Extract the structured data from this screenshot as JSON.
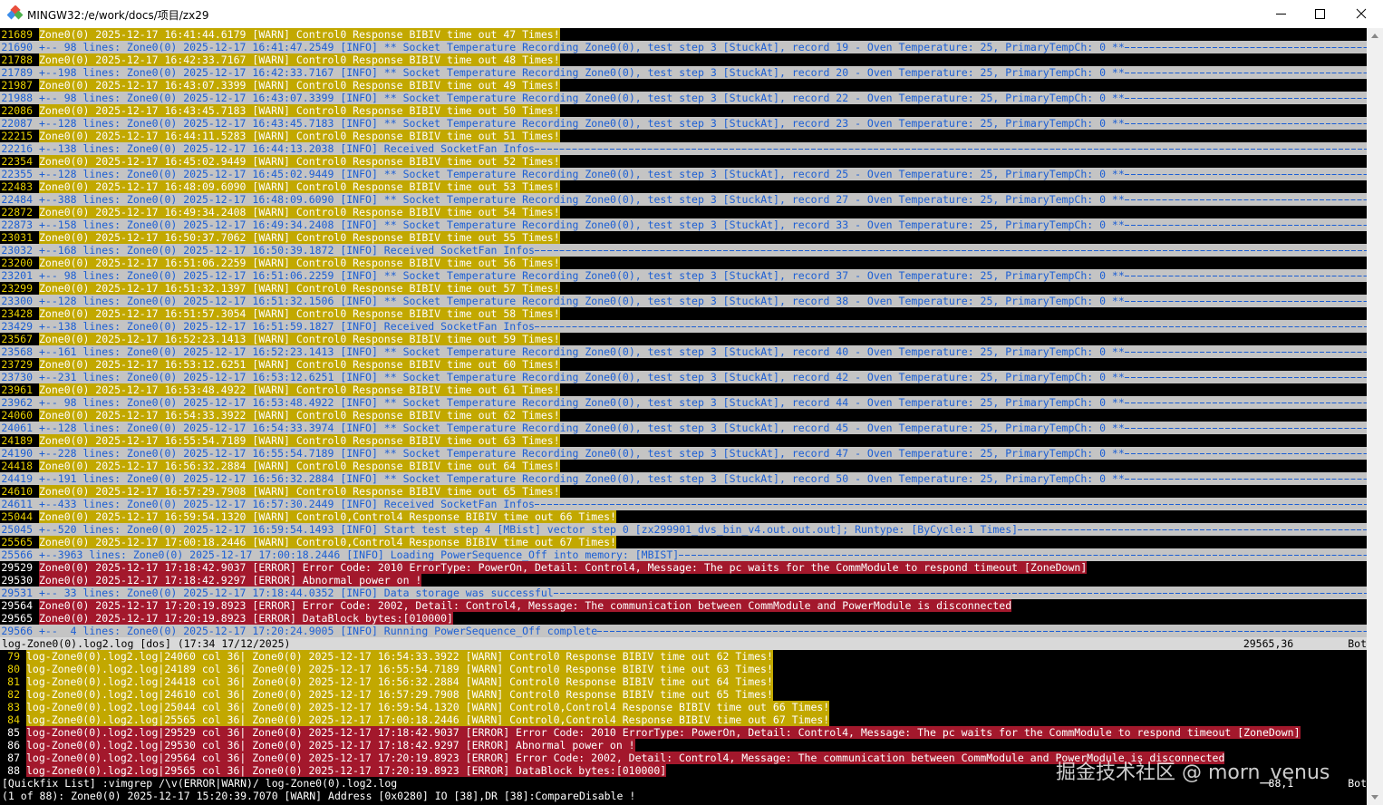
{
  "window": {
    "title": "MINGW32:/e/work/docs/项目/zx29"
  },
  "editor": {
    "lines": [
      {
        "number": 21689,
        "text": "Zone0(0) 2025-12-17 16:41:44.6179 [WARN] Control0 Response BIBIV time out 47 Times!"
      },
      {
        "number": 21690,
        "text": "+-- 98 lines: Zone0(0) 2025-12-17 16:41:47.2549 [INFO] ** Socket Temperature Recording Zone0(0), test step 3 [StuckAt], record 19 - Oven Temperature: 25, PrimaryTempCh: 0 **"
      },
      {
        "number": 21788,
        "text": "Zone0(0) 2025-12-17 16:42:33.7167 [WARN] Control0 Response BIBIV time out 48 Times!"
      },
      {
        "number": 21789,
        "text": "+--198 lines: Zone0(0) 2025-12-17 16:42:33.7167 [INFO] ** Socket Temperature Recording Zone0(0), test step 3 [StuckAt], record 20 - Oven Temperature: 25, PrimaryTempCh: 0 **"
      },
      {
        "number": 21987,
        "text": "Zone0(0) 2025-12-17 16:43:07.3399 [WARN] Control0 Response BIBIV time out 49 Times!"
      },
      {
        "number": 21988,
        "text": "+-- 98 lines: Zone0(0) 2025-12-17 16:43:07.3399 [INFO] ** Socket Temperature Recording Zone0(0), test step 3 [StuckAt], record 22 - Oven Temperature: 25, PrimaryTempCh: 0 **"
      },
      {
        "number": 22086,
        "text": "Zone0(0) 2025-12-17 16:43:45.7183 [WARN] Control0 Response BIBIV time out 50 Times!"
      },
      {
        "number": 22087,
        "text": "+--128 lines: Zone0(0) 2025-12-17 16:43:45.7183 [INFO] ** Socket Temperature Recording Zone0(0), test step 3 [StuckAt], record 23 - Oven Temperature: 25, PrimaryTempCh: 0 **"
      },
      {
        "number": 22215,
        "text": "Zone0(0) 2025-12-17 16:44:11.5283 [WARN] Control0 Response BIBIV time out 51 Times!"
      },
      {
        "number": 22216,
        "text": "+--138 lines: Zone0(0) 2025-12-17 16:44:13.2038 [INFO] Received SocketFan Infos"
      },
      {
        "number": 22354,
        "text": "Zone0(0) 2025-12-17 16:45:02.9449 [WARN] Control0 Response BIBIV time out 52 Times!"
      },
      {
        "number": 22355,
        "text": "+--128 lines: Zone0(0) 2025-12-17 16:45:02.9449 [INFO] ** Socket Temperature Recording Zone0(0), test step 3 [StuckAt], record 25 - Oven Temperature: 25, PrimaryTempCh: 0 **"
      },
      {
        "number": 22483,
        "text": "Zone0(0) 2025-12-17 16:48:09.6090 [WARN] Control0 Response BIBIV time out 53 Times!"
      },
      {
        "number": 22484,
        "text": "+--388 lines: Zone0(0) 2025-12-17 16:48:09.6090 [INFO] ** Socket Temperature Recording Zone0(0), test step 3 [StuckAt], record 27 - Oven Temperature: 25, PrimaryTempCh: 0 **"
      },
      {
        "number": 22872,
        "text": "Zone0(0) 2025-12-17 16:49:34.2408 [WARN] Control0 Response BIBIV time out 54 Times!"
      },
      {
        "number": 22873,
        "text": "+--158 lines: Zone0(0) 2025-12-17 16:49:34.2408 [INFO] ** Socket Temperature Recording Zone0(0), test step 3 [StuckAt], record 33 - Oven Temperature: 25, PrimaryTempCh: 0 **"
      },
      {
        "number": 23031,
        "text": "Zone0(0) 2025-12-17 16:50:37.7062 [WARN] Control0 Response BIBIV time out 55 Times!"
      },
      {
        "number": 23032,
        "text": "+--168 lines: Zone0(0) 2025-12-17 16:50:39.1872 [INFO] Received SocketFan Infos"
      },
      {
        "number": 23200,
        "text": "Zone0(0) 2025-12-17 16:51:06.2259 [WARN] Control0 Response BIBIV time out 56 Times!"
      },
      {
        "number": 23201,
        "text": "+-- 98 lines: Zone0(0) 2025-12-17 16:51:06.2259 [INFO] ** Socket Temperature Recording Zone0(0), test step 3 [StuckAt], record 37 - Oven Temperature: 25, PrimaryTempCh: 0 **"
      },
      {
        "number": 23299,
        "text": "Zone0(0) 2025-12-17 16:51:32.1397 [WARN] Control0 Response BIBIV time out 57 Times!"
      },
      {
        "number": 23300,
        "text": "+--128 lines: Zone0(0) 2025-12-17 16:51:32.1506 [INFO] ** Socket Temperature Recording Zone0(0), test step 3 [StuckAt], record 38 - Oven Temperature: 25, PrimaryTempCh: 0 **"
      },
      {
        "number": 23428,
        "text": "Zone0(0) 2025-12-17 16:51:57.3054 [WARN] Control0 Response BIBIV time out 58 Times!"
      },
      {
        "number": 23429,
        "text": "+--138 lines: Zone0(0) 2025-12-17 16:51:59.1827 [INFO] Received SocketFan Infos"
      },
      {
        "number": 23567,
        "text": "Zone0(0) 2025-12-17 16:52:23.1413 [WARN] Control0 Response BIBIV time out 59 Times!"
      },
      {
        "number": 23568,
        "text": "+--161 lines: Zone0(0) 2025-12-17 16:52:23.1413 [INFO] ** Socket Temperature Recording Zone0(0), test step 3 [StuckAt], record 40 - Oven Temperature: 25, PrimaryTempCh: 0 **"
      },
      {
        "number": 23729,
        "text": "Zone0(0) 2025-12-17 16:53:12.6251 [WARN] Control0 Response BIBIV time out 60 Times!"
      },
      {
        "number": 23730,
        "text": "+--231 lines: Zone0(0) 2025-12-17 16:53:12.6251 [INFO] ** Socket Temperature Recording Zone0(0), test step 3 [StuckAt], record 42 - Oven Temperature: 25, PrimaryTempCh: 0 **"
      },
      {
        "number": 23961,
        "text": "Zone0(0) 2025-12-17 16:53:48.4922 [WARN] Control0 Response BIBIV time out 61 Times!"
      },
      {
        "number": 23962,
        "text": "+-- 98 lines: Zone0(0) 2025-12-17 16:53:48.4922 [INFO] ** Socket Temperature Recording Zone0(0), test step 3 [StuckAt], record 44 - Oven Temperature: 25, PrimaryTempCh: 0 **"
      },
      {
        "number": 24060,
        "text": "Zone0(0) 2025-12-17 16:54:33.3922 [WARN] Control0 Response BIBIV time out 62 Times!"
      },
      {
        "number": 24061,
        "text": "+--128 lines: Zone0(0) 2025-12-17 16:54:33.3974 [INFO] ** Socket Temperature Recording Zone0(0), test step 3 [StuckAt], record 45 - Oven Temperature: 25, PrimaryTempCh: 0 **"
      },
      {
        "number": 24189,
        "text": "Zone0(0) 2025-12-17 16:55:54.7189 [WARN] Control0 Response BIBIV time out 63 Times!"
      },
      {
        "number": 24190,
        "text": "+--228 lines: Zone0(0) 2025-12-17 16:55:54.7189 [INFO] ** Socket Temperature Recording Zone0(0), test step 3 [StuckAt], record 47 - Oven Temperature: 25, PrimaryTempCh: 0 **"
      },
      {
        "number": 24418,
        "text": "Zone0(0) 2025-12-17 16:56:32.2884 [WARN] Control0 Response BIBIV time out 64 Times!"
      },
      {
        "number": 24419,
        "text": "+--191 lines: Zone0(0) 2025-12-17 16:56:32.2884 [INFO] ** Socket Temperature Recording Zone0(0), test step 3 [StuckAt], record 50 - Oven Temperature: 25, PrimaryTempCh: 0 **"
      },
      {
        "number": 24610,
        "text": "Zone0(0) 2025-12-17 16:57:29.7908 [WARN] Control0 Response BIBIV time out 65 Times!"
      },
      {
        "number": 24611,
        "text": "+--433 lines: Zone0(0) 2025-12-17 16:57:30.2449 [INFO] Received SocketFan Infos"
      },
      {
        "number": 25044,
        "text": "Zone0(0) 2025-12-17 16:59:54.1320 [WARN] Control0,Control4 Response BIBIV time out 66 Times!"
      },
      {
        "number": 25045,
        "text": "+--520 lines: Zone0(0) 2025-12-17 16:59:54.1493 [INFO] Start test step 4 [MBist] vector step 0 [zx299901_dvs_bin_v4.out.out.out]; Runtype: [ByCycle:1 Times]"
      },
      {
        "number": 25565,
        "text": "Zone0(0) 2025-12-17 17:00:18.2446 [WARN] Control0,Control4 Response BIBIV time out 67 Times!"
      },
      {
        "number": 25566,
        "text": "+--3963 lines: Zone0(0) 2025-12-17 17:00:18.2446 [INFO] Loading PowerSequence_Off into memory: [MBIST]"
      },
      {
        "number": 29529,
        "text": "Zone0(0) 2025-12-17 17:18:42.9037 [ERROR] Error Code: 2010 ErrorType: PowerOn, Detail: Control4, Message: The pc waits for the CommModule to respond timeout [ZoneDown]"
      },
      {
        "number": 29530,
        "text": "Zone0(0) 2025-12-17 17:18:42.9297 [ERROR] Abnormal power on !"
      },
      {
        "number": 29531,
        "text": "+-- 33 lines: Zone0(0) 2025-12-17 17:18:44.0352 [INFO] Data storage was successful"
      },
      {
        "number": 29564,
        "text": "Zone0(0) 2025-12-17 17:20:19.8923 [ERROR] Error Code: 2002, Detail: Control4, Message: The communication between CommModule and PowerModule is disconnected"
      },
      {
        "number": 29565,
        "text": "Zone0(0) 2025-12-17 17:20:19.8923 [ERROR] DataBlock bytes:[010000]"
      },
      {
        "number": 29566,
        "text": "+--  4 lines: Zone0(0) 2025-12-17 17:20:24.9005 [INFO] Running PowerSequence_Off complete"
      }
    ],
    "status": {
      "file": "log-Zone0(0).log2.log [dos] (17:34 17/12/2025)",
      "ruler": "29565,36",
      "position": "Bot"
    }
  },
  "quickfix": {
    "lines": [
      {
        "number": 79,
        "text": "log-Zone0(0).log2.log|24060 col 36| Zone0(0) 2025-12-17 16:54:33.3922 [WARN] Control0 Response BIBIV time out 62 Times!"
      },
      {
        "number": 80,
        "text": "log-Zone0(0).log2.log|24189 col 36| Zone0(0) 2025-12-17 16:55:54.7189 [WARN] Control0 Response BIBIV time out 63 Times!"
      },
      {
        "number": 81,
        "text": "log-Zone0(0).log2.log|24418 col 36| Zone0(0) 2025-12-17 16:56:32.2884 [WARN] Control0 Response BIBIV time out 64 Times!"
      },
      {
        "number": 82,
        "text": "log-Zone0(0).log2.log|24610 col 36| Zone0(0) 2025-12-17 16:57:29.7908 [WARN] Control0 Response BIBIV time out 65 Times!"
      },
      {
        "number": 83,
        "text": "log-Zone0(0).log2.log|25044 col 36| Zone0(0) 2025-12-17 16:59:54.1320 [WARN] Control0,Control4 Response BIBIV time out 66 Times!"
      },
      {
        "number": 84,
        "text": "log-Zone0(0).log2.log|25565 col 36| Zone0(0) 2025-12-17 17:00:18.2446 [WARN] Control0,Control4 Response BIBIV time out 67 Times!"
      },
      {
        "number": 85,
        "text": "log-Zone0(0).log2.log|29529 col 36| Zone0(0) 2025-12-17 17:18:42.9037 [ERROR] Error Code: 2010 ErrorType: PowerOn, Detail: Control4, Message: The pc waits for the CommModule to respond timeout [ZoneDown]"
      },
      {
        "number": 86,
        "text": "log-Zone0(0).log2.log|29530 col 36| Zone0(0) 2025-12-17 17:18:42.9297 [ERROR] Abnormal power on !"
      },
      {
        "number": 87,
        "text": "log-Zone0(0).log2.log|29564 col 36| Zone0(0) 2025-12-17 17:20:19.8923 [ERROR] Error Code: 2002, Detail: Control4, Message: The communication between CommModule and PowerModule is disconnected"
      },
      {
        "number": 88,
        "text": "log-Zone0(0).log2.log|29565 col 36| Zone0(0) 2025-12-17 17:20:19.8923 [ERROR] DataBlock bytes:[010000]"
      }
    ],
    "status": {
      "command": "[Quickfix List] :vimgrep /\\v(ERROR|WARN)/ log-Zone0(0).log2.log",
      "ruler": "88,1",
      "position": "Bot"
    }
  },
  "message": "(1 of 88): Zone0(0) 2025-12-17 15:20:39.7070 [WARN] Address [0x0280] IO [38],DR [38]:CompareDisable !",
  "watermark": "掘金技术社区 @ morn_venus"
}
